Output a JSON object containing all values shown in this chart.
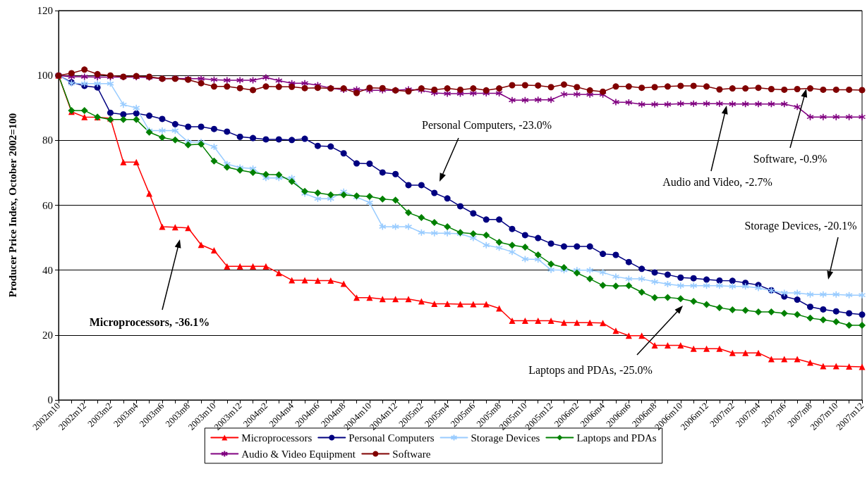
{
  "chart_data": {
    "type": "line",
    "ylabel": "Producer Price Index, October 2002=100",
    "categories": [
      "2002m10",
      null,
      "2002m12",
      null,
      "2003m2",
      null,
      "2003m4",
      null,
      "2003m6",
      null,
      "2003m8",
      null,
      "2003m10",
      null,
      "2003m12",
      null,
      "2004m2",
      null,
      "2004m4",
      null,
      "2004m6",
      null,
      "2004m8",
      null,
      "2004m10",
      null,
      "2004m12",
      null,
      "2005m2",
      null,
      "2005m4",
      null,
      "2005m6",
      null,
      "2005m8",
      null,
      "2005m10",
      null,
      "2005m12",
      null,
      "2006m2",
      null,
      "2006m4",
      null,
      "2006m6",
      null,
      "2006m8",
      null,
      "2006m10",
      null,
      "2006m12",
      null,
      "2007m2",
      null,
      "2007m4",
      null,
      "2007m6",
      null,
      "2007m8",
      null,
      "2007m10",
      null,
      "2007m12"
    ],
    "series": [
      {
        "name": "Microprocessors",
        "color": "#ff0000",
        "marker": "triangle",
        "values": [
          100,
          88.8,
          87.2,
          87.1,
          86.8,
          73.3,
          73.3,
          63.6,
          53.4,
          53.2,
          53,
          47.8,
          46.1,
          41.2,
          41.2,
          41.2,
          41.2,
          39.1,
          36.9,
          36.9,
          36.8,
          36.8,
          35.8,
          31.5,
          31.5,
          31.1,
          31.1,
          31.1,
          30.4,
          29.6,
          29.6,
          29.5,
          29.5,
          29.5,
          28.2,
          24.4,
          24.4,
          24.4,
          24.4,
          23.8,
          23.8,
          23.8,
          23.7,
          21.3,
          19.8,
          19.8,
          16.8,
          16.8,
          16.8,
          15.8,
          15.8,
          15.8,
          14.5,
          14.5,
          14.5,
          12.6,
          12.6,
          12.6,
          11.5,
          10.4,
          10.4,
          10.3,
          10.2
        ]
      },
      {
        "name": "Personal Computers",
        "color": "#000080",
        "marker": "circle",
        "values": [
          100,
          97.9,
          96.8,
          96.3,
          88.5,
          88,
          88.3,
          87.6,
          86.6,
          85,
          84.2,
          84.2,
          83.5,
          82.7,
          81.1,
          80.7,
          80.3,
          80.3,
          80.1,
          80.5,
          78.3,
          78.1,
          76,
          72.9,
          72.8,
          70.1,
          69.6,
          66.2,
          66.2,
          63.8,
          62.1,
          59.7,
          57.5,
          55.6,
          55.6,
          52.7,
          50.8,
          49.9,
          48.2,
          47.3,
          47.3,
          47.3,
          45,
          44.7,
          42.5,
          40.4,
          39.3,
          38.6,
          37.7,
          37.5,
          37.1,
          36.8,
          36.7,
          36.1,
          35.4,
          33.8,
          31.9,
          30.9,
          28.7,
          27.9,
          27.3,
          26.7,
          26.3
        ]
      },
      {
        "name": "Storage Devices",
        "color": "#99ccff",
        "marker": "cross",
        "values": [
          100,
          97.6,
          97.5,
          97.5,
          97.5,
          91,
          90,
          83,
          83,
          83,
          79.5,
          79.5,
          78,
          72.7,
          71.6,
          71.3,
          68.4,
          68.4,
          68.4,
          63.6,
          62,
          62,
          64.2,
          62.5,
          60.8,
          53.4,
          53.4,
          53.4,
          51.6,
          51.4,
          51.4,
          51.2,
          49.9,
          47.7,
          46.9,
          45.6,
          43.4,
          43.3,
          40.1,
          40,
          40,
          40,
          39.3,
          38,
          37.3,
          37.3,
          36.4,
          35.7,
          35.2,
          35.2,
          35.2,
          35.2,
          35,
          35,
          34.5,
          33.7,
          33,
          33,
          32.5,
          32.5,
          32.5,
          32.3,
          32.3
        ]
      },
      {
        "name": "Laptops and PDAs",
        "color": "#008000",
        "marker": "diamond",
        "values": [
          100,
          89.2,
          89.2,
          87.2,
          86.4,
          86.4,
          86.4,
          82.5,
          80.9,
          80.1,
          78.6,
          78.8,
          73.6,
          71.7,
          70.8,
          70.1,
          69.5,
          69.4,
          67.3,
          64.3,
          63.8,
          63.2,
          63.2,
          62.9,
          62.7,
          61.9,
          61.6,
          57.7,
          56.2,
          54.7,
          53.4,
          51.6,
          51.2,
          50.8,
          48.6,
          47.7,
          47.1,
          44.7,
          41.9,
          40.8,
          39.1,
          37.3,
          35.3,
          35.1,
          35.2,
          33.2,
          31.5,
          31.6,
          31.2,
          30.4,
          29.4,
          28.4,
          27.8,
          27.6,
          27.1,
          27.1,
          26.7,
          26.3,
          25.2,
          24.7,
          24.1,
          23,
          23
        ]
      },
      {
        "name": "Audio & Video Equipment",
        "color": "#800080",
        "marker": "cross",
        "values": [
          100,
          99.6,
          99.6,
          99.5,
          99.5,
          99.5,
          99.5,
          99.4,
          99,
          99.1,
          99,
          99,
          98.7,
          98.5,
          98.5,
          98.5,
          99.4,
          98.4,
          97.6,
          97.6,
          97,
          96.1,
          95.6,
          95.7,
          95.4,
          95.4,
          95.4,
          95.7,
          95.4,
          94.6,
          94.4,
          94.4,
          94.5,
          94.5,
          94.5,
          92.4,
          92.4,
          92.5,
          92.5,
          94.2,
          94.2,
          94.1,
          94.1,
          91.8,
          91.7,
          91.1,
          91.1,
          91.1,
          91.3,
          91.3,
          91.3,
          91.3,
          91.2,
          91.2,
          91.2,
          91.2,
          91.2,
          90.3,
          87.2,
          87.2,
          87.2,
          87.2,
          87.2
        ]
      },
      {
        "name": "Software",
        "color": "#800000",
        "marker": "circle",
        "values": [
          100,
          100.7,
          101.8,
          100.4,
          100,
          99.6,
          99.8,
          99.6,
          99,
          99,
          98.7,
          97.6,
          96.6,
          96.6,
          96.1,
          95.5,
          96.6,
          96.5,
          96.5,
          96.1,
          96.2,
          96,
          96,
          94.6,
          96.2,
          96.1,
          95.4,
          95.1,
          96,
          95.6,
          96,
          95.6,
          96,
          95.4,
          96,
          97,
          97,
          96.9,
          96.4,
          97.2,
          96.4,
          95.4,
          95,
          96.6,
          96.6,
          96.2,
          96.4,
          96.6,
          96.8,
          96.8,
          96.6,
          95.7,
          96,
          96,
          96.2,
          95.8,
          95.6,
          95.8,
          96,
          95.6,
          95.6,
          95.6,
          95.5
        ]
      }
    ],
    "ylim": [
      0,
      120
    ],
    "yticks": [
      0,
      20,
      40,
      60,
      80,
      100,
      120
    ],
    "grid": "y",
    "legend": "bottom",
    "line_style": "solid",
    "annotations": [
      "Microprocessors, -36.1%",
      "Personal Computers, -23.0%",
      "Audio and Video, -2.7%",
      "Software, -0.9%",
      "Storage Devices, -20.1%",
      "Laptops and PDAs, -25.0%"
    ]
  }
}
